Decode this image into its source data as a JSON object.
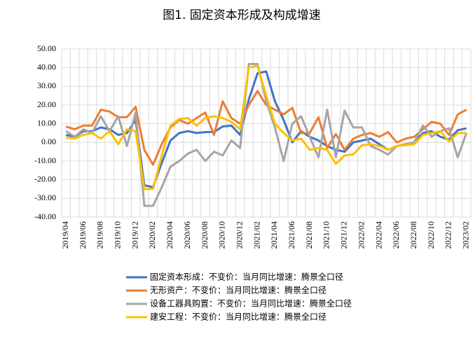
{
  "chart_data": {
    "type": "line",
    "title": "图1. 固定资本形成及构成增速",
    "categories": [
      "2019/04",
      null,
      "2019/06",
      null,
      "2019/08",
      null,
      "2019/10",
      null,
      "2019/12",
      null,
      "2020/02",
      null,
      "2020/04",
      null,
      "2020/06",
      null,
      "2020/08",
      null,
      "2020/10",
      null,
      "2020/12",
      null,
      "2021/02",
      null,
      "2021/04",
      null,
      "2021/06",
      null,
      "2021/08",
      null,
      "2021/10",
      null,
      "2021/12",
      null,
      "2022/02",
      null,
      "2022/04",
      null,
      "2022/06",
      null,
      "2022/08",
      null,
      "2022/10",
      null,
      "2022/12",
      null,
      "2023/02"
    ],
    "series": [
      {
        "name": "固定资本形成：不变价：当月同比增速：腾景全口径",
        "color": "#4472c4",
        "values": [
          4,
          3,
          6,
          6,
          8,
          7,
          4,
          5,
          12,
          -23,
          -24,
          -11,
          1,
          5,
          6,
          5,
          5.5,
          5.5,
          8.5,
          9,
          4,
          23,
          37,
          38,
          22,
          12,
          0,
          6,
          3,
          1,
          -2,
          -4,
          -5,
          0,
          1,
          2,
          -1,
          -4,
          -2,
          -1,
          0,
          5,
          6,
          3,
          1.5,
          6.5,
          7.5
        ]
      },
      {
        "name": "无形资产：不变价：当月同比增速：腾景全口径",
        "color": "#ed7d31",
        "values": [
          8.5,
          7,
          9,
          9,
          17.5,
          16.5,
          13.5,
          13.5,
          19,
          -4,
          -12,
          -1,
          8,
          12,
          10,
          13,
          16,
          4,
          22,
          13,
          10,
          20,
          27.5,
          20,
          17.5,
          15,
          18.5,
          5,
          5,
          13.5,
          -3,
          4.5,
          -4,
          2,
          4,
          5,
          3,
          5.5,
          0,
          2,
          3,
          7,
          11,
          10,
          4,
          15,
          17.5
        ]
      },
      {
        "name": "设备工器具购置：不变价：当月同比增速：腾景全口径",
        "color": "#a5a5a5",
        "values": [
          6,
          3,
          7,
          5,
          14,
          6,
          14,
          -2,
          16,
          -34,
          -34,
          -24,
          -13,
          -10,
          -6,
          -4,
          -10,
          -5,
          -7,
          1,
          -3,
          42,
          42,
          22,
          8,
          -10,
          10,
          14,
          3,
          -8,
          17.5,
          -8,
          17,
          8,
          8,
          -2,
          -4,
          -6.5,
          -2,
          -1,
          0,
          9,
          3,
          6,
          7.5,
          -8,
          5
        ]
      },
      {
        "name": "建安工程：不变价：当月同比增速：腾景全口径",
        "color": "#ffc000",
        "values": [
          2.5,
          2,
          4,
          5,
          2,
          6,
          -1,
          7,
          6,
          -25,
          -25,
          -7,
          9,
          12.5,
          13,
          9,
          13,
          14,
          13,
          11,
          7,
          40,
          41,
          25,
          10,
          5,
          1,
          2,
          -4,
          -3,
          -4,
          -11.5,
          -7,
          -6.5,
          -1.5,
          -1,
          -2,
          -4,
          -2,
          -1.5,
          -1,
          4,
          5,
          6,
          0.5,
          5,
          5
        ]
      }
    ],
    "ylim": [
      -40,
      50
    ],
    "yticks": [
      {
        "value": 50,
        "label": "50.00"
      },
      {
        "value": 40,
        "label": "40.00"
      },
      {
        "value": 30,
        "label": "30.00"
      },
      {
        "value": 20,
        "label": "20.00"
      },
      {
        "value": 10,
        "label": "10.00"
      },
      {
        "value": 0,
        "label": "0.00"
      },
      {
        "value": -10,
        "label": "-10.00"
      },
      {
        "value": -20,
        "label": "-20.00"
      },
      {
        "value": -30,
        "label": "-30.00"
      },
      {
        "value": -40,
        "label": "-40.00"
      }
    ],
    "grid": true
  }
}
